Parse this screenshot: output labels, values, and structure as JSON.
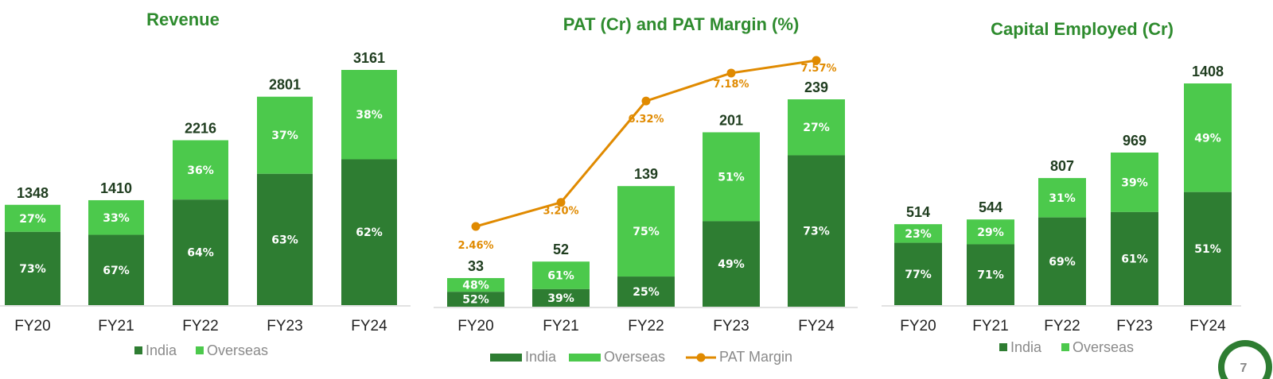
{
  "colors": {
    "india": "#2e7d32",
    "overseas": "#4cc94c",
    "margin": "#e08a00",
    "title": "#2e8b2e"
  },
  "page_number": "7",
  "chart_data": [
    {
      "type": "bar",
      "title": "Revenue",
      "categories": [
        "FY20",
        "FY21",
        "FY22",
        "FY23",
        "FY24"
      ],
      "totals": [
        1348,
        1410,
        2216,
        2801,
        3161
      ],
      "series": [
        {
          "name": "India",
          "values": [
            73,
            67,
            64,
            63,
            62
          ],
          "labels": [
            "73%",
            "67%",
            "64%",
            "63%",
            "62%"
          ]
        },
        {
          "name": "Overseas",
          "values": [
            27,
            33,
            36,
            37,
            38
          ],
          "labels": [
            "27%",
            "33%",
            "36%",
            "37%",
            "38%"
          ]
        }
      ],
      "ylim": [
        0,
        3161
      ],
      "legend": "bottom"
    },
    {
      "type": "bar",
      "title": "PAT (Cr) and PAT Margin (%)",
      "categories": [
        "FY20",
        "FY21",
        "FY22",
        "FY23",
        "FY24"
      ],
      "totals": [
        33,
        52,
        139,
        201,
        239
      ],
      "series": [
        {
          "name": "India",
          "values": [
            52,
            39,
            25,
            49,
            73
          ],
          "labels": [
            "52%",
            "39%",
            "25%",
            "49%",
            "73%"
          ]
        },
        {
          "name": "Overseas",
          "values": [
            48,
            61,
            75,
            51,
            27
          ],
          "labels": [
            "48%",
            "61%",
            "75%",
            "51%",
            "27%"
          ]
        }
      ],
      "line": {
        "name": "PAT Margin",
        "values": [
          2.46,
          3.2,
          6.32,
          7.18,
          7.57
        ],
        "labels": [
          "2.46%",
          "3.20%",
          "6.32%",
          "7.18%",
          "7.57%"
        ]
      },
      "ylim": [
        0,
        239
      ],
      "legend": "bottom"
    },
    {
      "type": "bar",
      "title": "Capital Employed (Cr)",
      "categories": [
        "FY20",
        "FY21",
        "FY22",
        "FY23",
        "FY24"
      ],
      "totals": [
        514,
        544,
        807,
        969,
        1408
      ],
      "series": [
        {
          "name": "India",
          "values": [
            77,
            71,
            69,
            61,
            51
          ],
          "labels": [
            "77%",
            "71%",
            "69%",
            "61%",
            "51%"
          ]
        },
        {
          "name": "Overseas",
          "values": [
            23,
            29,
            31,
            39,
            49
          ],
          "labels": [
            "23%",
            "29%",
            "31%",
            "39%",
            "49%"
          ]
        }
      ],
      "ylim": [
        0,
        1408
      ],
      "legend": "bottom"
    }
  ]
}
